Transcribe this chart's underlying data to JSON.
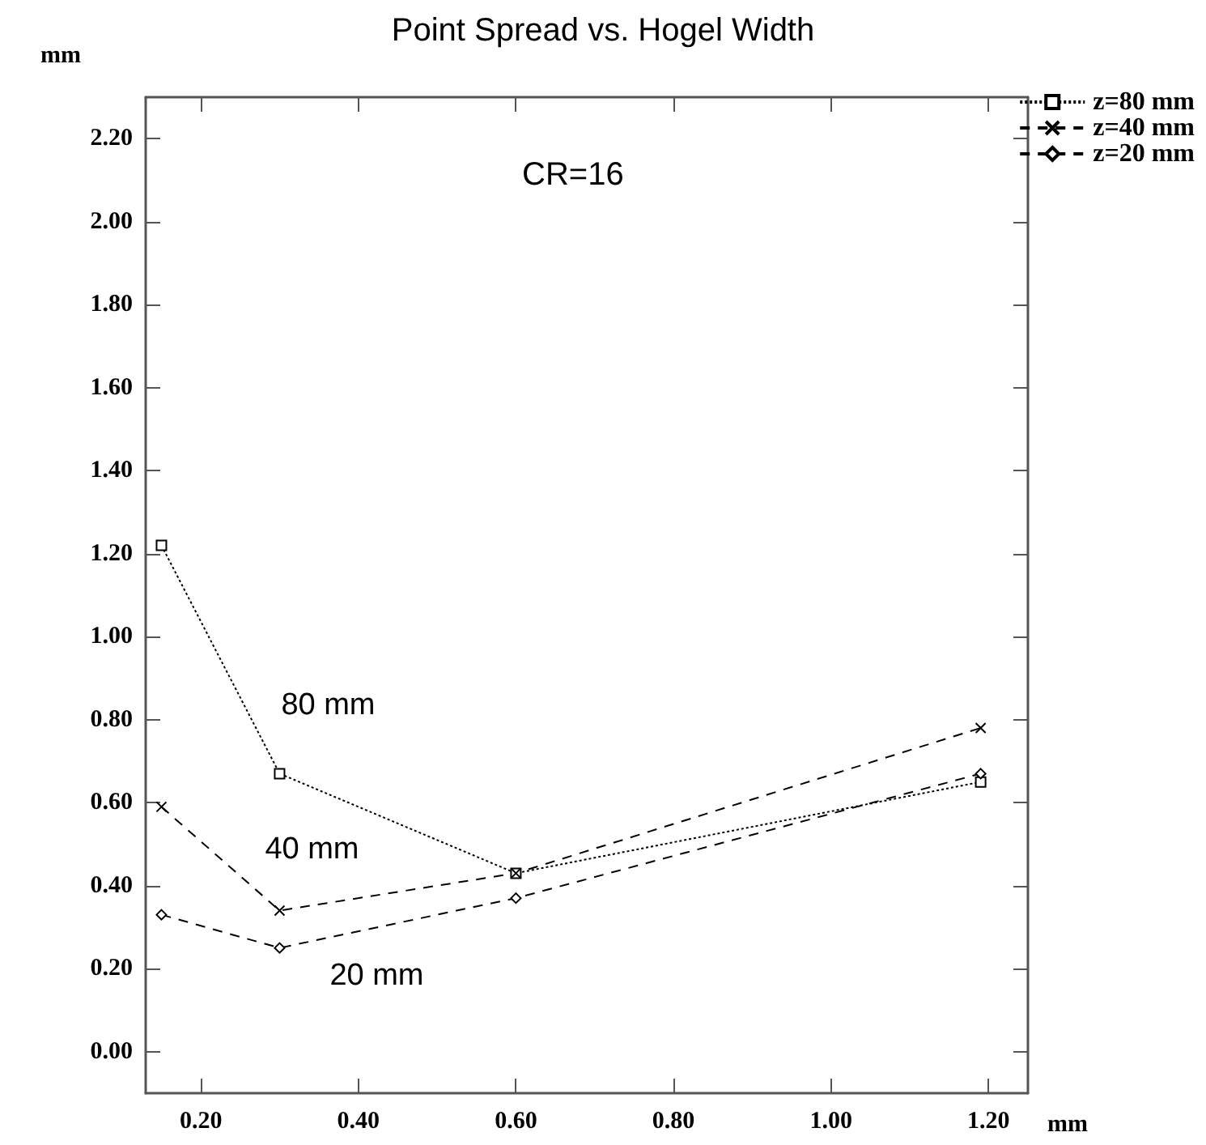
{
  "chart_data": {
    "type": "line",
    "title": "Point Spread vs. Hogel Width",
    "xlabel": "mm",
    "ylabel": "mm",
    "x": [
      0.15,
      0.3,
      0.6,
      1.19
    ],
    "series": [
      {
        "name": "z=80 mm",
        "color": "#000000",
        "values": [
          1.22,
          0.67,
          0.43,
          0.65
        ],
        "marker": "square",
        "line_style": "dotted"
      },
      {
        "name": "z=40 mm",
        "color": "#000000",
        "values": [
          0.59,
          0.34,
          0.43,
          0.78
        ],
        "marker": "cross",
        "line_style": "dashed"
      },
      {
        "name": "z=20 mm",
        "color": "#000000",
        "values": [
          0.33,
          0.25,
          0.37,
          0.67
        ],
        "marker": "diamond",
        "line_style": "dashed"
      }
    ],
    "annotations": [
      "CR=16",
      "80 mm",
      "40 mm",
      "20 mm"
    ],
    "xlim": [
      0.13,
      1.25
    ],
    "ylim": [
      -0.1,
      2.3
    ],
    "xticks": [
      {
        "value": 0.2,
        "label": "0.20"
      },
      {
        "value": 0.4,
        "label": "0.40"
      },
      {
        "value": 0.6,
        "label": "0.60"
      },
      {
        "value": 0.8,
        "label": "0.80"
      },
      {
        "value": 1.0,
        "label": "1.00"
      },
      {
        "value": 1.2,
        "label": "1.20"
      }
    ],
    "yticks": [
      {
        "value": 0,
        "label": "0.00"
      },
      {
        "value": 0.2,
        "label": "0.20"
      },
      {
        "value": 0.4,
        "label": "0.40"
      },
      {
        "value": 0.6,
        "label": "0.60"
      },
      {
        "value": 0.8,
        "label": "0.80"
      },
      {
        "value": 1.0,
        "label": "1.00"
      },
      {
        "value": 1.2,
        "label": "1.20"
      },
      {
        "value": 1.4,
        "label": "1.40"
      },
      {
        "value": 1.6,
        "label": "1.60"
      },
      {
        "value": 1.8,
        "label": "1.80"
      },
      {
        "value": 2.0,
        "label": "2.00"
      },
      {
        "value": 2.2,
        "label": "2.20"
      }
    ],
    "grid": false,
    "legend": "top right"
  }
}
